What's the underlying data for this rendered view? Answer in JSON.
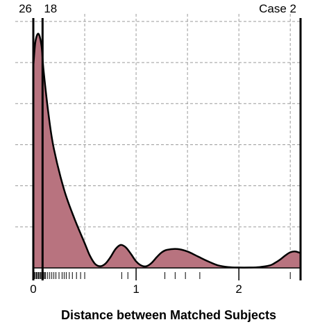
{
  "chart_data": {
    "type": "area",
    "title": "",
    "xlabel": "Distance between Matched Subjects",
    "ylabel": "",
    "xlim": [
      0,
      2.6
    ],
    "xticks": [
      "0",
      "1",
      "2"
    ],
    "grid": true,
    "fill_color": "#b8737f",
    "line_color": "#000000",
    "density_curve": {
      "x": [
        0,
        0.02,
        0.05,
        0.08,
        0.1,
        0.15,
        0.2,
        0.3,
        0.4,
        0.5,
        0.55,
        0.6,
        0.65,
        0.7,
        0.75,
        0.8,
        0.85,
        0.9,
        0.95,
        1.0,
        1.05,
        1.1,
        1.15,
        1.2,
        1.25,
        1.3,
        1.4,
        1.5,
        1.6,
        1.7,
        1.8,
        1.9,
        2.0,
        2.1,
        2.2,
        2.3,
        2.35,
        2.4,
        2.45,
        2.5,
        2.55,
        2.6
      ],
      "y": [
        2.45,
        2.75,
        2.85,
        2.7,
        2.4,
        1.85,
        1.45,
        0.95,
        0.6,
        0.3,
        0.15,
        0.05,
        0.02,
        0.05,
        0.13,
        0.23,
        0.28,
        0.25,
        0.17,
        0.08,
        0.03,
        0.02,
        0.06,
        0.13,
        0.19,
        0.22,
        0.23,
        0.2,
        0.14,
        0.08,
        0.03,
        0.01,
        0.005,
        0.005,
        0.01,
        0.03,
        0.06,
        0.1,
        0.15,
        0.19,
        0.2,
        0.18
      ]
    },
    "rug_x": [
      0.0,
      0.01,
      0.02,
      0.03,
      0.04,
      0.05,
      0.06,
      0.07,
      0.08,
      0.09,
      0.1,
      0.11,
      0.12,
      0.14,
      0.16,
      0.18,
      0.2,
      0.22,
      0.25,
      0.28,
      0.3,
      0.32,
      0.35,
      0.38,
      0.42,
      0.46,
      0.5,
      0.86,
      0.92,
      1.28,
      1.38,
      1.48,
      1.62,
      2.5
    ],
    "reference_lines": [
      {
        "label": "26",
        "x": 0.0
      },
      {
        "label": "18",
        "x": 0.09
      },
      {
        "label": "Case 2",
        "x": 2.6
      }
    ]
  }
}
